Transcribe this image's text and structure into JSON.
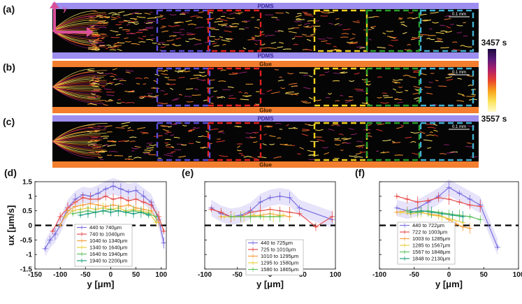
{
  "colorbar": {
    "top_label": "3457 s",
    "bottom_label": "3557 s",
    "colors": [
      "#1a0a3a",
      "#5a1a7a",
      "#b0206a",
      "#e8442e",
      "#f7a21b",
      "#fbe35a",
      "#fffacd"
    ]
  },
  "axis_glyph": {
    "label": "y"
  },
  "images": [
    {
      "letter": "(a)",
      "top_label": "PDMS",
      "bottom_label": "PDMS",
      "top_color": "#9d8ef0",
      "bottom_color": "#9d8ef0",
      "scale_bar": "0.1 mm",
      "box_colors": [
        "#5b4bd6",
        "#e02020",
        "#f0d020",
        "#2ca02c",
        "#40b0d0"
      ]
    },
    {
      "letter": "(b)",
      "top_label": "Glue",
      "bottom_label": "Glue",
      "top_color": "#f27e2e",
      "bottom_color": "#f27e2e",
      "scale_bar": "0.1 mm",
      "box_colors": [
        "#5b4bd6",
        "#e02020",
        "#f0d020",
        "#2ca02c",
        "#40b0d0"
      ]
    },
    {
      "letter": "(c)",
      "top_label": "PDMS",
      "bottom_label": "Glue",
      "top_color": "#9d8ef0",
      "bottom_color": "#f27e2e",
      "scale_bar": "0.1 mm",
      "box_colors": [
        "#5b4bd6",
        "#e02020",
        "#f0d020",
        "#2ca02c",
        "#40b0d0"
      ]
    }
  ],
  "chart_data": [
    {
      "type": "line",
      "letter": "(d)",
      "xlabel": "y [μm]",
      "ylabel": "ux [μm/s]",
      "xlim": [
        -150,
        110
      ],
      "ylim": [
        -1.5,
        1.5
      ],
      "xticks": [
        -150,
        -100,
        -50,
        0,
        50,
        100
      ],
      "yticks": [
        -1.5,
        -1,
        -0.5,
        0,
        0.5,
        1,
        1.5
      ],
      "ytick_labels": [
        "-1.5",
        "-1",
        "-0.5",
        "0",
        "0.5",
        "1",
        "1.5"
      ],
      "series": [
        {
          "name": "440 to 740μm",
          "color": "#7b6fe0",
          "x": [
            -130,
            -120,
            -110,
            -100,
            -85,
            -70,
            -55,
            -40,
            -25,
            -10,
            5,
            20,
            35,
            50,
            65,
            80,
            95,
            105
          ],
          "y": [
            -0.8,
            -0.5,
            -0.3,
            0.0,
            0.6,
            0.9,
            1.05,
            1.0,
            1.1,
            1.25,
            1.35,
            1.25,
            1.15,
            1.2,
            1.0,
            0.8,
            0.2,
            -0.6
          ]
        },
        {
          "name": "740 to 1040μm",
          "color": "#e85050",
          "x": [
            -115,
            -100,
            -85,
            -70,
            -55,
            -40,
            -25,
            -10,
            5,
            20,
            35,
            50,
            65,
            80,
            95,
            105
          ],
          "y": [
            -0.2,
            0.3,
            0.6,
            0.8,
            0.95,
            0.9,
            0.9,
            1.0,
            0.9,
            0.95,
            0.85,
            0.9,
            0.8,
            0.7,
            0.3,
            -0.2
          ]
        },
        {
          "name": "1040 to 1340μm",
          "color": "#f5a040",
          "x": [
            -100,
            -85,
            -70,
            -55,
            -40,
            -25,
            -10,
            5,
            20,
            35,
            50,
            65,
            80,
            95
          ],
          "y": [
            0.0,
            0.5,
            0.65,
            0.7,
            0.75,
            0.7,
            0.65,
            0.7,
            0.65,
            0.7,
            0.6,
            0.55,
            0.5,
            0.1
          ]
        },
        {
          "name": "1340 to 1640μm",
          "color": "#e8d040",
          "x": [
            -90,
            -75,
            -60,
            -45,
            -30,
            -15,
            0,
            15,
            30,
            45,
            60,
            75,
            90
          ],
          "y": [
            0.3,
            0.5,
            0.55,
            0.6,
            0.55,
            0.6,
            0.55,
            0.6,
            0.5,
            0.55,
            0.5,
            0.45,
            0.1
          ]
        },
        {
          "name": "1640 to 1940μm",
          "color": "#60c060",
          "x": [
            -75,
            -60,
            -45,
            -30,
            -15,
            0,
            15,
            30,
            45,
            60,
            75,
            90
          ],
          "y": [
            0.4,
            0.45,
            0.5,
            0.45,
            0.5,
            0.55,
            0.5,
            0.45,
            0.5,
            0.45,
            0.4,
            0.3
          ]
        },
        {
          "name": "1940 to 2200μm",
          "color": "#20a080",
          "x": [
            -60,
            -45,
            -30,
            -15,
            0,
            15,
            30,
            45,
            60,
            75
          ],
          "y": [
            0.35,
            0.4,
            0.45,
            0.5,
            0.45,
            0.5,
            0.45,
            0.4,
            0.45,
            0.35
          ]
        }
      ]
    },
    {
      "type": "line",
      "letter": "(e)",
      "xlabel": "y [μm]",
      "ylabel": "",
      "xlim": [
        -100,
        100
      ],
      "ylim": [
        -1.5,
        1.5
      ],
      "xticks": [
        -100,
        -50,
        0,
        50,
        100
      ],
      "yticks": [
        -1.5,
        -1,
        -0.5,
        0,
        0.5,
        1,
        1.5
      ],
      "ytick_labels": [
        "",
        "",
        "",
        "",
        "",
        "",
        ""
      ],
      "series": [
        {
          "name": "440 to 725μm",
          "color": "#7b6fe0",
          "x": [
            -90,
            -75,
            -60,
            -45,
            -30,
            -15,
            0,
            15,
            30,
            45,
            95
          ],
          "y": [
            0.6,
            0.4,
            0.3,
            0.35,
            0.5,
            0.8,
            0.95,
            1.0,
            0.95,
            0.6,
            0.2
          ]
        },
        {
          "name": "725 to 1010μm",
          "color": "#e85050",
          "x": [
            -90,
            -75,
            -60,
            -45,
            -30,
            -15,
            0,
            15,
            30,
            45,
            70,
            95
          ],
          "y": [
            0.55,
            0.45,
            0.3,
            0.3,
            0.45,
            0.5,
            0.55,
            0.5,
            0.45,
            0.4,
            -0.05,
            0.3
          ]
        },
        {
          "name": "1010 to 1295μm",
          "color": "#f5a040",
          "x": [
            -75,
            -60,
            -45,
            -30,
            -15,
            0,
            15,
            30
          ],
          "y": [
            0.3,
            0.3,
            0.3,
            0.3,
            0.35,
            0.4,
            0.35,
            0.3
          ]
        },
        {
          "name": "1295 to 1580μm",
          "color": "#e8d040",
          "x": [
            -70,
            -55,
            -40,
            -25,
            -10,
            5,
            20
          ],
          "y": [
            0.3,
            0.3,
            0.3,
            0.35,
            0.3,
            0.3,
            0.35
          ]
        },
        {
          "name": "1580 to 1865μm",
          "color": "#60c060",
          "x": [
            -60,
            -45,
            -30,
            -15,
            0,
            15
          ],
          "y": [
            0.3,
            0.3,
            0.3,
            0.3,
            0.3,
            0.3
          ]
        }
      ]
    },
    {
      "type": "line",
      "letter": "(f)",
      "xlabel": "y [μm]",
      "ylabel": "",
      "xlim": [
        -100,
        100
      ],
      "ylim": [
        -1.5,
        1.5
      ],
      "xticks": [
        -100,
        -50,
        0,
        50,
        100
      ],
      "yticks": [
        -1.5,
        -1,
        -0.5,
        0,
        0.5,
        1,
        1.5
      ],
      "ytick_labels": [
        "",
        "",
        "",
        "",
        "",
        "",
        ""
      ],
      "series": [
        {
          "name": "440 to 722μm",
          "color": "#7b6fe0",
          "x": [
            -75,
            -60,
            -45,
            -30,
            -15,
            0,
            15,
            30,
            45,
            70
          ],
          "y": [
            0.6,
            0.5,
            0.6,
            0.8,
            1.0,
            1.3,
            1.1,
            0.9,
            0.7,
            -0.75
          ]
        },
        {
          "name": "722 to 1003μm",
          "color": "#e85050",
          "x": [
            -75,
            -60,
            -45,
            -30,
            -15,
            0,
            15,
            30,
            45
          ],
          "y": [
            1.0,
            0.9,
            0.8,
            0.85,
            0.95,
            0.9,
            0.8,
            0.7,
            0.65
          ]
        },
        {
          "name": "1003 to 1285μm",
          "color": "#f5a040",
          "x": [
            -75,
            -60,
            -45,
            -30,
            -15,
            0,
            10,
            20,
            30
          ],
          "y": [
            0.45,
            0.5,
            0.45,
            0.4,
            0.35,
            0.2,
            0.05,
            -0.05,
            -0.1
          ]
        },
        {
          "name": "1285 to 1567μm",
          "color": "#e8d040",
          "x": [
            -70,
            -55,
            -40,
            -25,
            -10,
            5,
            20
          ],
          "y": [
            0.45,
            0.4,
            0.45,
            0.35,
            0.3,
            0.2,
            0.1
          ]
        },
        {
          "name": "1567 to 1848μm",
          "color": "#60c060",
          "x": [
            -60,
            -45,
            -30,
            -15,
            0,
            15,
            30,
            45
          ],
          "y": [
            0.5,
            0.45,
            0.5,
            0.45,
            0.4,
            0.35,
            0.3,
            0.2
          ]
        },
        {
          "name": "1848 to 2130μm",
          "color": "#20a080",
          "x": [
            -55,
            -40,
            -25,
            -10,
            5,
            20
          ],
          "y": [
            0.45,
            0.5,
            0.45,
            0.4,
            0.35,
            0.3
          ]
        }
      ]
    }
  ]
}
